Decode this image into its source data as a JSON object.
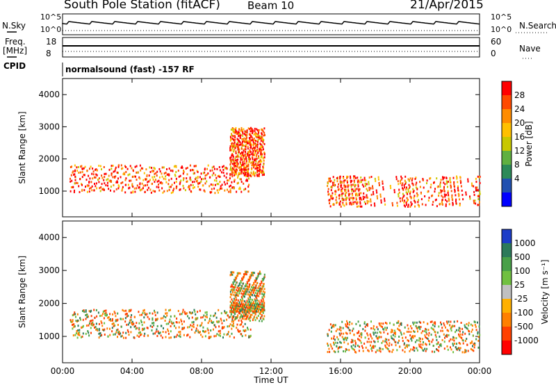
{
  "header": {
    "title": "South Pole Station (fitACF)",
    "beam": "Beam 10",
    "date": "21/Apr/2015"
  },
  "status_panels": {
    "nsky_label": "N.Sky",
    "nsearch_label": "N.Search",
    "noise_ticks": [
      "10^5",
      "10^0"
    ],
    "freq_label": "Freq.",
    "freq_unit": "[MHz]",
    "freq_ticks": [
      "18",
      "8"
    ],
    "nave_label": "Nave",
    "nave_ticks": [
      "60",
      "0"
    ],
    "cpid_label": "CPID",
    "cpid_text": "normalsound (fast) -157 RF"
  },
  "chart_data": [
    {
      "type": "heatmap",
      "name": "power",
      "ylabel": "Slant Range [km]",
      "ylim": [
        200,
        4500
      ],
      "yticks": [
        "1000",
        "2000",
        "3000",
        "4000"
      ],
      "colorbar_label": "Power [dB]",
      "colorbar_ticks": [
        "28",
        "24",
        "20",
        "16",
        "12",
        "8",
        "4"
      ],
      "colorbar_colors": [
        "#ff0000",
        "#ff4a00",
        "#ff8c00",
        "#ffc000",
        "#c8c800",
        "#60b040",
        "#2c8a58",
        "#2050b0",
        "#0000ff"
      ]
    },
    {
      "type": "heatmap",
      "name": "velocity",
      "ylabel": "Slant Range [km]",
      "ylim": [
        200,
        4500
      ],
      "yticks": [
        "1000",
        "2000",
        "3000",
        "4000"
      ],
      "colorbar_label": "Velocity [m s⁻¹]",
      "colorbar_ticks": [
        "1000",
        "500",
        "100",
        "25",
        "-25",
        "-100",
        "-500",
        "-1000"
      ],
      "colorbar_colors": [
        "#1c3cc8",
        "#2c7a5a",
        "#48a048",
        "#70c040",
        "#c0c0c0",
        "#ffb000",
        "#ff8000",
        "#ff4000",
        "#ff0000"
      ]
    }
  ],
  "x_axis": {
    "label": "Time UT",
    "ticks": [
      "00:00",
      "04:00",
      "08:00",
      "12:00",
      "16:00",
      "20:00",
      "00:00"
    ]
  }
}
